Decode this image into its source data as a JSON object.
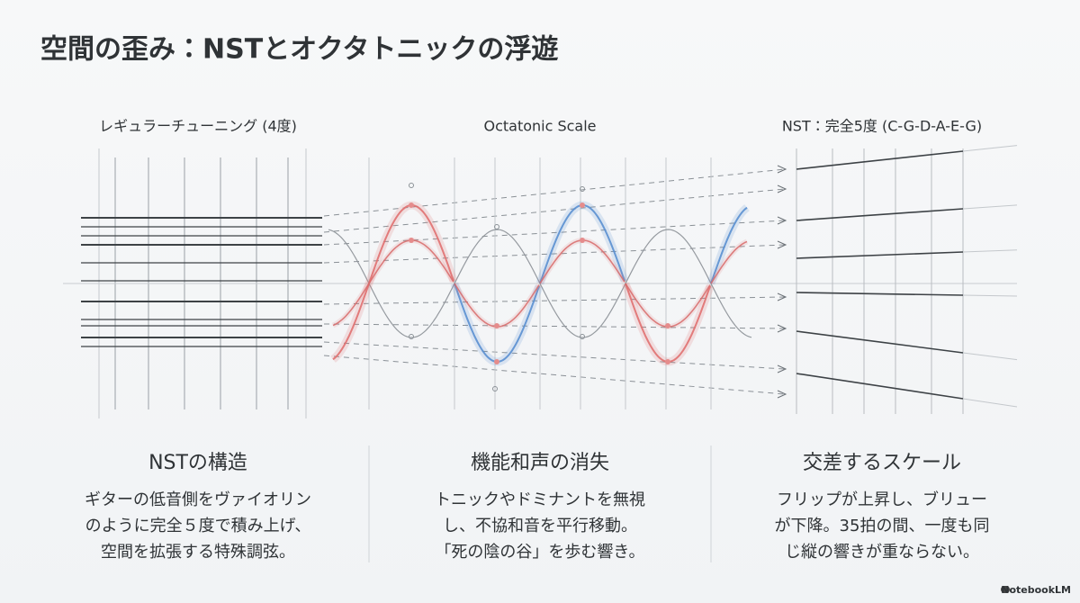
{
  "header": {
    "title": "空間の歪み：NSTとオクタトニックの浮遊"
  },
  "panels": [
    {
      "label": "レギュラーチューニング (4度)"
    },
    {
      "label": "Octatonic Scale"
    },
    {
      "label": "NST：完全5度 (C-G-D-A-E-G)"
    }
  ],
  "columns": [
    {
      "heading": "NSTの構造",
      "lines": [
        "ギターの低音側をヴァイオリン",
        "のように完全５度で積み上げ、",
        "空間を拡張する特殊調弦。"
      ]
    },
    {
      "heading": "機能和声の消失",
      "lines": [
        "トニックやドミナントを無視",
        "し、不協和音を平行移動。",
        "「死の陰の谷」を歩む響き。"
      ]
    },
    {
      "heading": "交差するスケール",
      "lines": [
        "フリップが上昇し、ブリュー",
        "が下降。35拍の間、一度も同",
        "じ縦の響きが重ならない。"
      ]
    }
  ],
  "footer": {
    "brand": "NotebookLM"
  }
}
